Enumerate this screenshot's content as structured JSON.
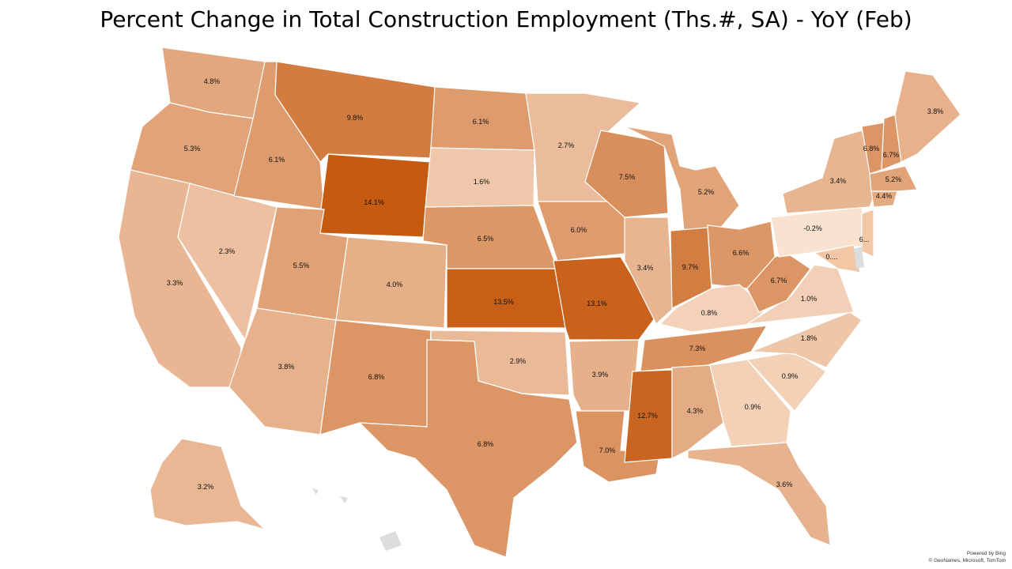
{
  "title": "Percent Change in Total Construction Employment (Ths.#, SA) - YoY (Feb)",
  "attribution": {
    "powered_by": "Powered by Bing",
    "credits": "© GeoNames, Microsoft, TomTom"
  },
  "color_scale": {
    "low": "#f9e2d0",
    "high": "#c55a11",
    "min_value": -0.2,
    "max_value": 14.1,
    "no_data": "#e0e0e0"
  },
  "states": [
    {
      "id": "WA",
      "value": 4.8,
      "label": "4.8%"
    },
    {
      "id": "OR",
      "value": 5.3,
      "label": "5.3%"
    },
    {
      "id": "CA",
      "value": 3.3,
      "label": "3.3%"
    },
    {
      "id": "NV",
      "value": 2.3,
      "label": "2.3%"
    },
    {
      "id": "ID",
      "value": 6.1,
      "label": "6.1%"
    },
    {
      "id": "MT",
      "value": 9.8,
      "label": "9.8%"
    },
    {
      "id": "WY",
      "value": 14.1,
      "label": "14.1%"
    },
    {
      "id": "UT",
      "value": 5.5,
      "label": "5.5%"
    },
    {
      "id": "AZ",
      "value": 3.8,
      "label": "3.8%"
    },
    {
      "id": "CO",
      "value": 4.0,
      "label": "4.0%"
    },
    {
      "id": "NM",
      "value": 6.8,
      "label": "6.8%"
    },
    {
      "id": "ND",
      "value": 6.1,
      "label": "6.1%"
    },
    {
      "id": "SD",
      "value": 1.6,
      "label": "1.6%"
    },
    {
      "id": "NE",
      "value": 6.5,
      "label": "6.5%"
    },
    {
      "id": "KS",
      "value": 13.5,
      "label": "13.5%"
    },
    {
      "id": "OK",
      "value": 2.9,
      "label": "2.9%"
    },
    {
      "id": "TX",
      "value": 6.8,
      "label": "6.8%"
    },
    {
      "id": "MN",
      "value": 2.7,
      "label": "2.7%"
    },
    {
      "id": "IA",
      "value": 6.0,
      "label": "6.0%"
    },
    {
      "id": "MO",
      "value": 13.1,
      "label": "13.1%"
    },
    {
      "id": "AR",
      "value": 3.9,
      "label": "3.9%"
    },
    {
      "id": "LA",
      "value": 7.0,
      "label": "7.0%"
    },
    {
      "id": "WI",
      "value": 7.5,
      "label": "7.5%"
    },
    {
      "id": "IL",
      "value": 3.4,
      "label": "3.4%"
    },
    {
      "id": "MI",
      "value": 5.2,
      "label": "5.2%"
    },
    {
      "id": "IN",
      "value": 9.7,
      "label": "9.7%"
    },
    {
      "id": "OH",
      "value": 6.6,
      "label": "6.6%"
    },
    {
      "id": "KY",
      "value": 0.8,
      "label": "0.8%"
    },
    {
      "id": "TN",
      "value": 7.3,
      "label": "7.3%"
    },
    {
      "id": "MS",
      "value": 12.7,
      "label": "12.7%"
    },
    {
      "id": "AL",
      "value": 4.3,
      "label": "4.3%"
    },
    {
      "id": "GA",
      "value": 0.9,
      "label": "0.9%"
    },
    {
      "id": "FL",
      "value": 3.6,
      "label": "3.6%"
    },
    {
      "id": "SC",
      "value": 0.9,
      "label": "0.9%"
    },
    {
      "id": "NC",
      "value": 1.8,
      "label": "1.8%"
    },
    {
      "id": "VA",
      "value": 1.0,
      "label": "1.0%"
    },
    {
      "id": "WV",
      "value": 6.7,
      "label": "6.7%"
    },
    {
      "id": "PA",
      "value": -0.2,
      "label": "-0.2%"
    },
    {
      "id": "NY",
      "value": 3.4,
      "label": "3.4%"
    },
    {
      "id": "VT",
      "value": 6.8,
      "label": "6.8%"
    },
    {
      "id": "NH",
      "value": 6.7,
      "label": "6.7%"
    },
    {
      "id": "ME",
      "value": 3.8,
      "label": "3.8%"
    },
    {
      "id": "MA",
      "value": 5.2,
      "label": "5.2%"
    },
    {
      "id": "CT",
      "value": 4.4,
      "label": "4.4%"
    },
    {
      "id": "NJ",
      "value": null,
      "label": "6..."
    },
    {
      "id": "MD",
      "value": null,
      "label": "0...."
    },
    {
      "id": "AK",
      "value": 3.2,
      "label": "3.2%"
    }
  ]
}
